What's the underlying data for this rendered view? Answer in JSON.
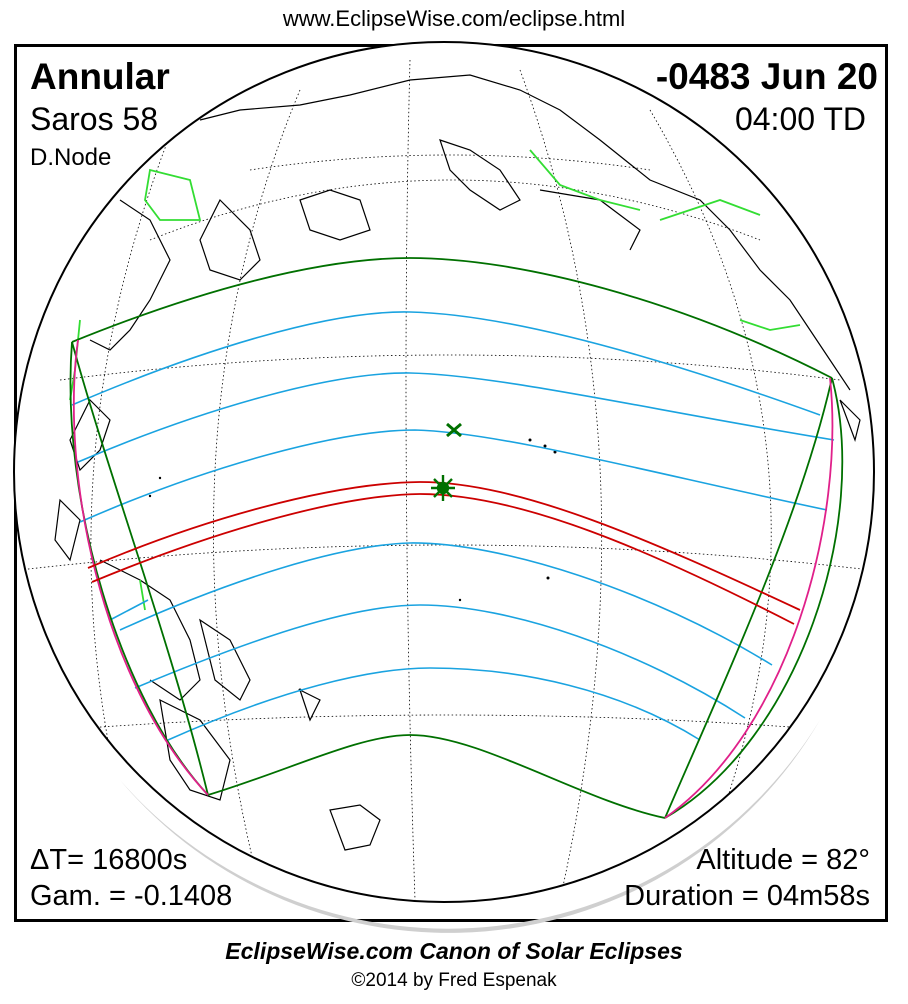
{
  "header": {
    "url": "www.EclipseWise.com/eclipse.html"
  },
  "eclipse": {
    "type": "Annular",
    "date": "-0483 Jun 20",
    "saros": "Saros  58",
    "time": "04:00 TD",
    "node": "D.Node",
    "delta_t": "ΔT=  16800s",
    "gamma": "Gam. = -0.1408",
    "altitude": "Altitude = 82°",
    "duration": "Duration = 04m58s"
  },
  "footer": {
    "canon": "EclipseWise.com Canon of Solar Eclipses",
    "copyright": "©2014 by Fred Espenak"
  },
  "colors": {
    "central_path": "#cc0000",
    "penumbral_limits": "#007000",
    "penumbral_contours": "#1aa3e0",
    "rise_set_curves": "#e0208a",
    "borders": "#33dd33",
    "coastlines": "#000000",
    "graticule": "#000000"
  },
  "markers": {
    "greatest_eclipse": "asterisk-icon",
    "subsolar_point": "x-icon"
  }
}
